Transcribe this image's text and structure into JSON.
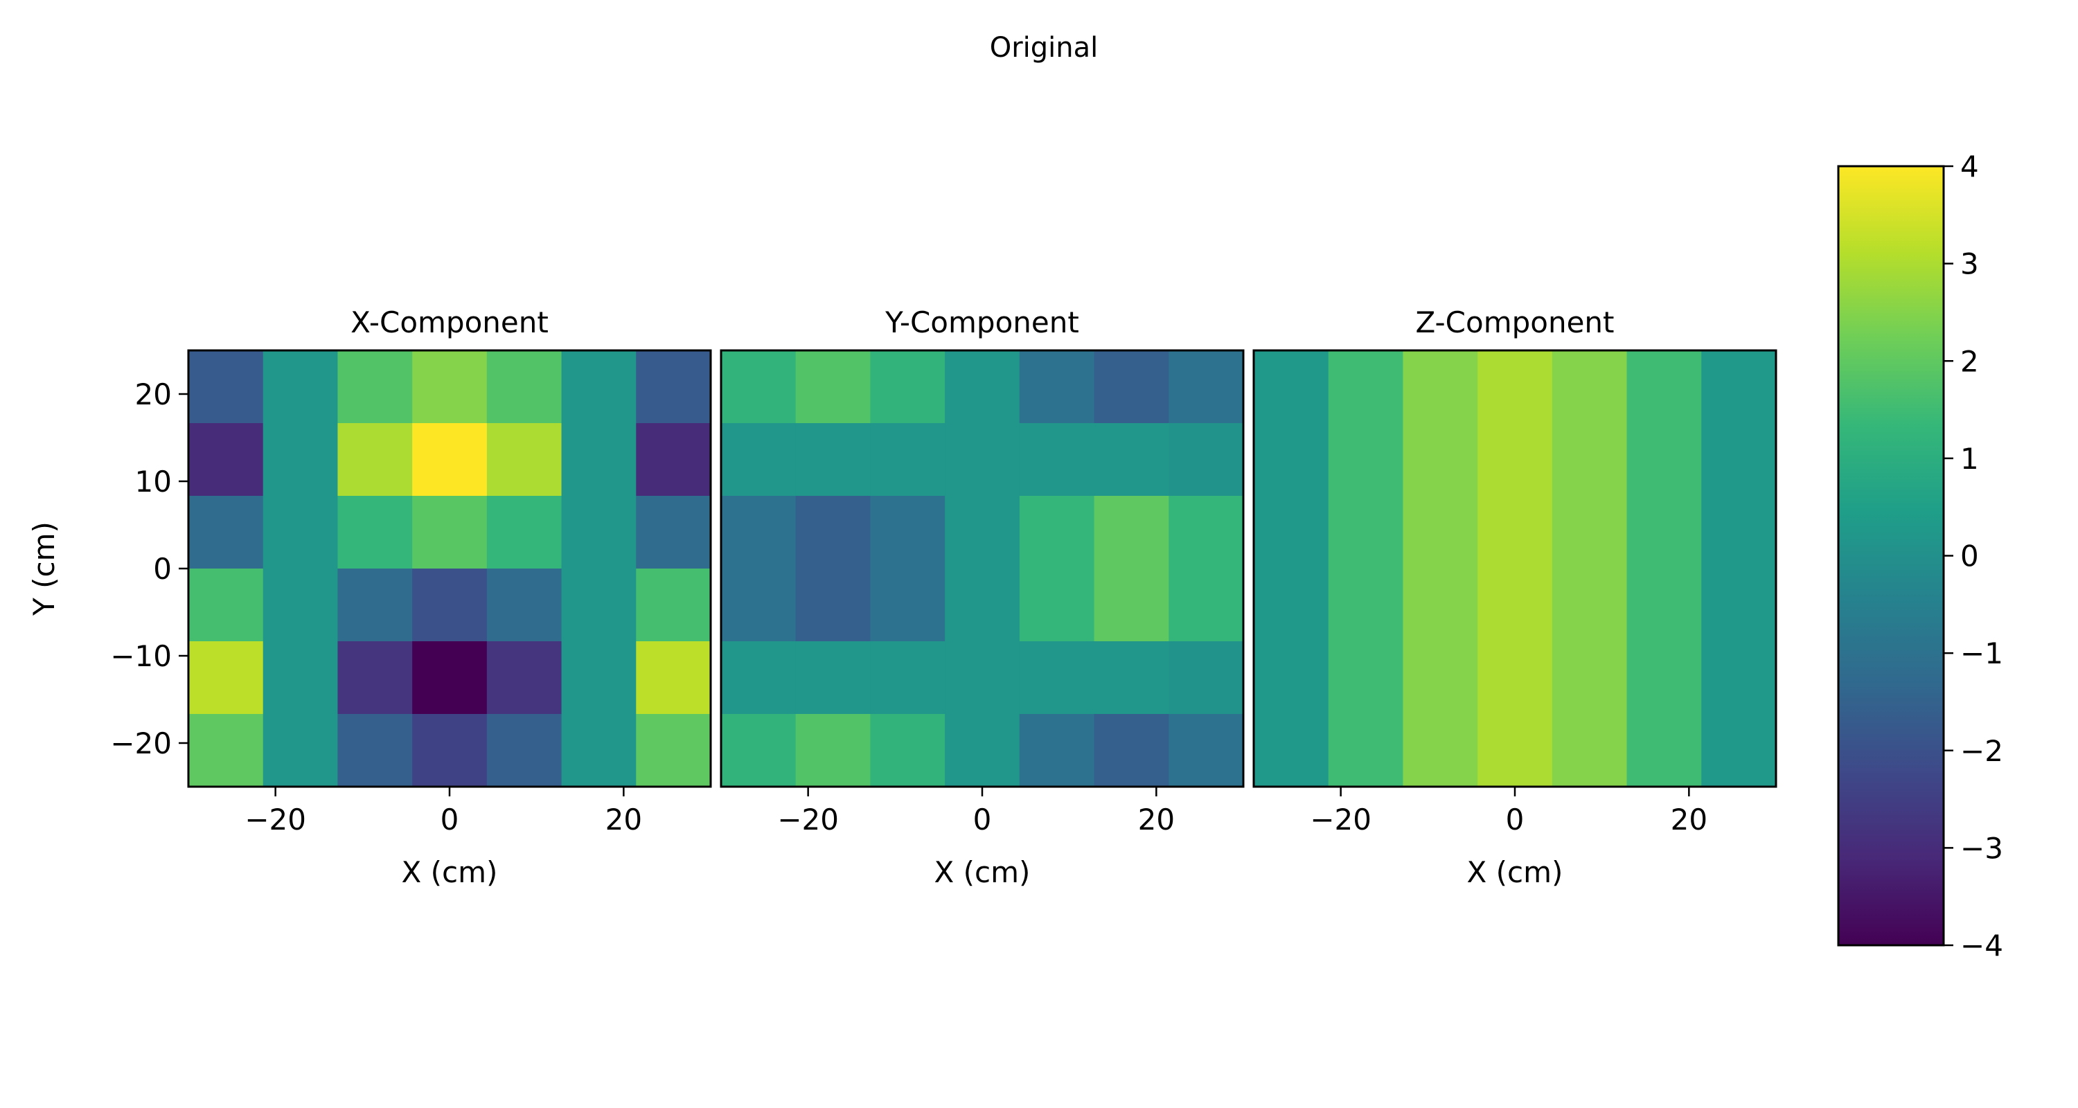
{
  "figure": {
    "title": "Original"
  },
  "chart_data": [
    {
      "type": "heatmap",
      "title": "X-Component",
      "xlabel": "X (cm)",
      "ylabel": "Y (cm)",
      "xlim": [
        -30,
        30
      ],
      "ylim": [
        -25,
        25
      ],
      "x_ticks": [
        -20,
        0,
        20
      ],
      "x_tick_labels": [
        "−20",
        "0",
        "20"
      ],
      "y_ticks": [
        -20,
        -10,
        0,
        10,
        20
      ],
      "y_tick_labels": [
        "−20",
        "−10",
        "0",
        "10",
        "20"
      ],
      "cols": 7,
      "rows": 6,
      "values": [
        [
          -1.7,
          0.2,
          1.8,
          2.5,
          1.8,
          0.2,
          -1.7
        ],
        [
          -3.0,
          0.2,
          3.0,
          4.0,
          3.0,
          0.2,
          -3.0
        ],
        [
          -1.2,
          0.2,
          1.3,
          1.9,
          1.3,
          0.2,
          -1.2
        ],
        [
          1.6,
          0.2,
          -1.2,
          -2.0,
          -1.2,
          0.2,
          1.6
        ],
        [
          3.2,
          0.2,
          -2.8,
          -4.0,
          -2.8,
          0.2,
          3.2
        ],
        [
          2.0,
          0.2,
          -1.6,
          -2.4,
          -1.6,
          0.2,
          2.0
        ]
      ]
    },
    {
      "type": "heatmap",
      "title": "Y-Component",
      "xlabel": "X (cm)",
      "ylabel": "",
      "xlim": [
        -30,
        30
      ],
      "ylim": [
        -25,
        25
      ],
      "x_ticks": [
        -20,
        0,
        20
      ],
      "x_tick_labels": [
        "−20",
        "0",
        "20"
      ],
      "cols": 7,
      "rows": 6,
      "values": [
        [
          1.2,
          1.8,
          1.2,
          0.2,
          -1.0,
          -1.6,
          -1.0
        ],
        [
          0.2,
          0.2,
          0.2,
          0.2,
          0.2,
          0.2,
          0.1
        ],
        [
          -1.0,
          -1.6,
          -1.0,
          0.2,
          1.3,
          2.0,
          1.3
        ],
        [
          -1.0,
          -1.6,
          -1.0,
          0.2,
          1.3,
          2.0,
          1.3
        ],
        [
          0.2,
          0.2,
          0.2,
          0.2,
          0.2,
          0.2,
          0.1
        ],
        [
          1.2,
          1.8,
          1.2,
          0.2,
          -1.0,
          -1.6,
          -1.0
        ]
      ]
    },
    {
      "type": "heatmap",
      "title": "Z-Component",
      "xlabel": "X (cm)",
      "ylabel": "",
      "xlim": [
        -30,
        30
      ],
      "ylim": [
        -25,
        25
      ],
      "x_ticks": [
        -20,
        0,
        20
      ],
      "x_tick_labels": [
        "−20",
        "0",
        "20"
      ],
      "cols": 7,
      "rows": 6,
      "values": [
        [
          0.3,
          1.5,
          2.5,
          3.0,
          2.5,
          1.5,
          0.3
        ],
        [
          0.3,
          1.5,
          2.5,
          3.0,
          2.5,
          1.5,
          0.3
        ],
        [
          0.3,
          1.5,
          2.5,
          3.0,
          2.5,
          1.5,
          0.3
        ],
        [
          0.3,
          1.5,
          2.5,
          3.0,
          2.5,
          1.5,
          0.3
        ],
        [
          0.3,
          1.5,
          2.5,
          3.0,
          2.5,
          1.5,
          0.3
        ],
        [
          0.3,
          1.5,
          2.5,
          3.0,
          2.5,
          1.5,
          0.3
        ]
      ]
    }
  ],
  "colorbar": {
    "colormap": "viridis",
    "vmin": -4,
    "vmax": 4,
    "ticks": [
      4,
      3,
      2,
      1,
      0,
      -1,
      -2,
      -3,
      -4
    ],
    "tick_labels": [
      "4",
      "3",
      "2",
      "1",
      "0",
      "−1",
      "−2",
      "−3",
      "−4"
    ],
    "stops": [
      "#440154",
      "#482878",
      "#3e4989",
      "#31688e",
      "#26828e",
      "#1f9e89",
      "#35b779",
      "#6ece58",
      "#b5de2b",
      "#fde725"
    ]
  }
}
